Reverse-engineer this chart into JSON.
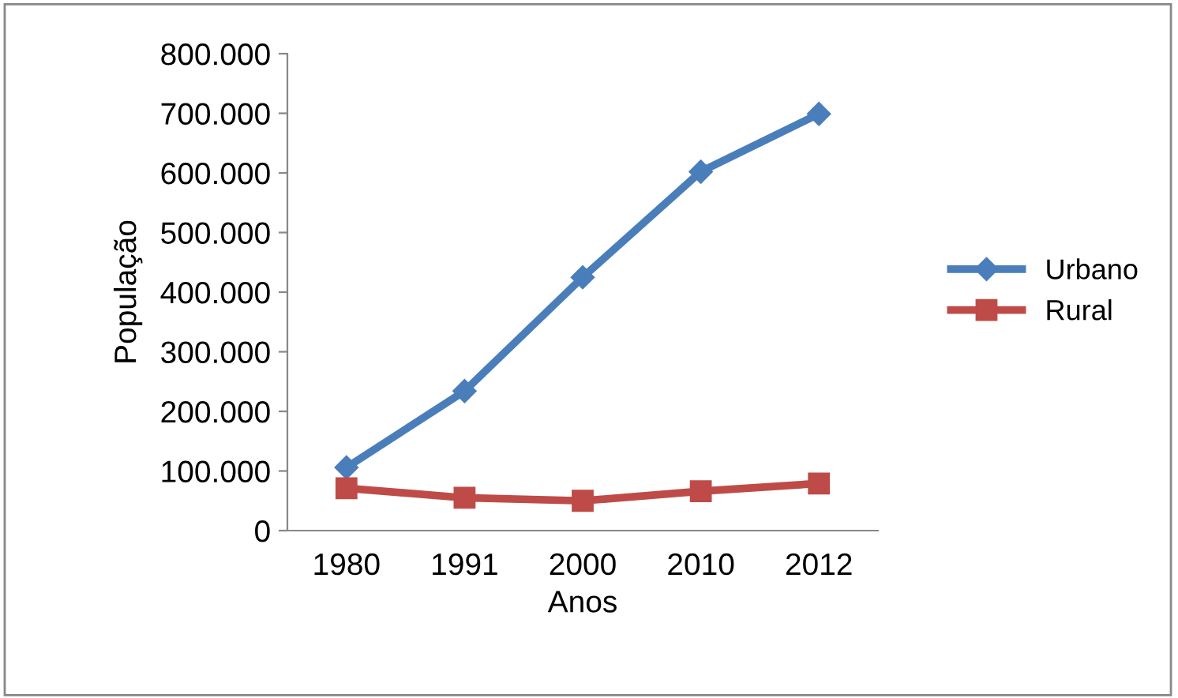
{
  "chart_data": {
    "type": "line",
    "xlabel": "Anos",
    "ylabel": "População",
    "categories": [
      "1980",
      "1991",
      "2000",
      "2010",
      "2012"
    ],
    "series": [
      {
        "name": "Urbano",
        "color": "#4a7ebb",
        "marker": "diamond",
        "values": [
          106000,
          234000,
          425000,
          602000,
          699000
        ]
      },
      {
        "name": "Rural",
        "color": "#be4b48",
        "marker": "square",
        "values": [
          71000,
          55000,
          50000,
          66000,
          79000
        ]
      }
    ],
    "ylim": [
      0,
      800000
    ],
    "yticks": [
      {
        "value": 0,
        "label": "0"
      },
      {
        "value": 100000,
        "label": "100.000"
      },
      {
        "value": 200000,
        "label": "200.000"
      },
      {
        "value": 300000,
        "label": "300.000"
      },
      {
        "value": 400000,
        "label": "400.000"
      },
      {
        "value": 500000,
        "label": "500.000"
      },
      {
        "value": 600000,
        "label": "600.000"
      },
      {
        "value": 700000,
        "label": "700.000"
      },
      {
        "value": 800000,
        "label": "800.000"
      }
    ],
    "grid": false,
    "legend": "right",
    "line_style": "solid"
  }
}
